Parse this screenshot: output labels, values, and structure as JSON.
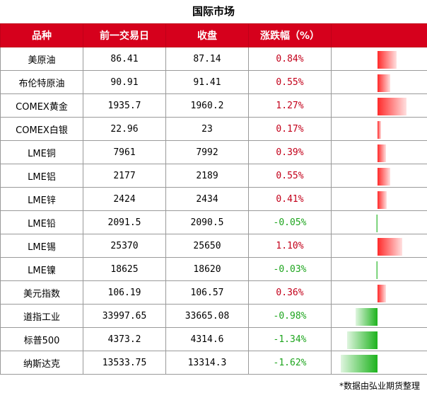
{
  "title": "国际市场",
  "headers": [
    "品种",
    "前一交易日",
    "收盘",
    "涨跌幅（%）"
  ],
  "rows": [
    {
      "name": "美原油",
      "prev": "86.41",
      "close": "87.14",
      "change": "0.84%",
      "pct": 0.84
    },
    {
      "name": "布伦特原油",
      "prev": "90.91",
      "close": "91.41",
      "change": "0.55%",
      "pct": 0.55
    },
    {
      "name": "COMEX黄金",
      "prev": "1935.7",
      "close": "1960.2",
      "change": "1.27%",
      "pct": 1.27
    },
    {
      "name": "COMEX白银",
      "prev": "22.96",
      "close": "23",
      "change": "0.17%",
      "pct": 0.17
    },
    {
      "name": "LME铜",
      "prev": "7961",
      "close": "7992",
      "change": "0.39%",
      "pct": 0.39
    },
    {
      "name": "LME铝",
      "prev": "2177",
      "close": "2189",
      "change": "0.55%",
      "pct": 0.55
    },
    {
      "name": "LME锌",
      "prev": "2424",
      "close": "2434",
      "change": "0.41%",
      "pct": 0.41
    },
    {
      "name": "LME铅",
      "prev": "2091.5",
      "close": "2090.5",
      "change": "-0.05%",
      "pct": -0.05
    },
    {
      "name": "LME锡",
      "prev": "25370",
      "close": "25650",
      "change": "1.10%",
      "pct": 1.1
    },
    {
      "name": "LME镍",
      "prev": "18625",
      "close": "18620",
      "change": "-0.03%",
      "pct": -0.03
    },
    {
      "name": "美元指数",
      "prev": "106.19",
      "close": "106.57",
      "change": "0.36%",
      "pct": 0.36
    },
    {
      "name": "道指工业",
      "prev": "33997.65",
      "close": "33665.08",
      "change": "-0.98%",
      "pct": -0.98
    },
    {
      "name": "标普500",
      "prev": "4373.2",
      "close": "4314.6",
      "change": "-1.34%",
      "pct": -1.34
    },
    {
      "name": "纳斯达克",
      "prev": "13533.75",
      "close": "13314.3",
      "change": "-1.62%",
      "pct": -1.62
    }
  ],
  "footnote": "*数据由弘业期货整理",
  "colors": {
    "header_bg": "#d6001c",
    "positive": "#c3001a",
    "negative": "#1ea51e"
  }
}
